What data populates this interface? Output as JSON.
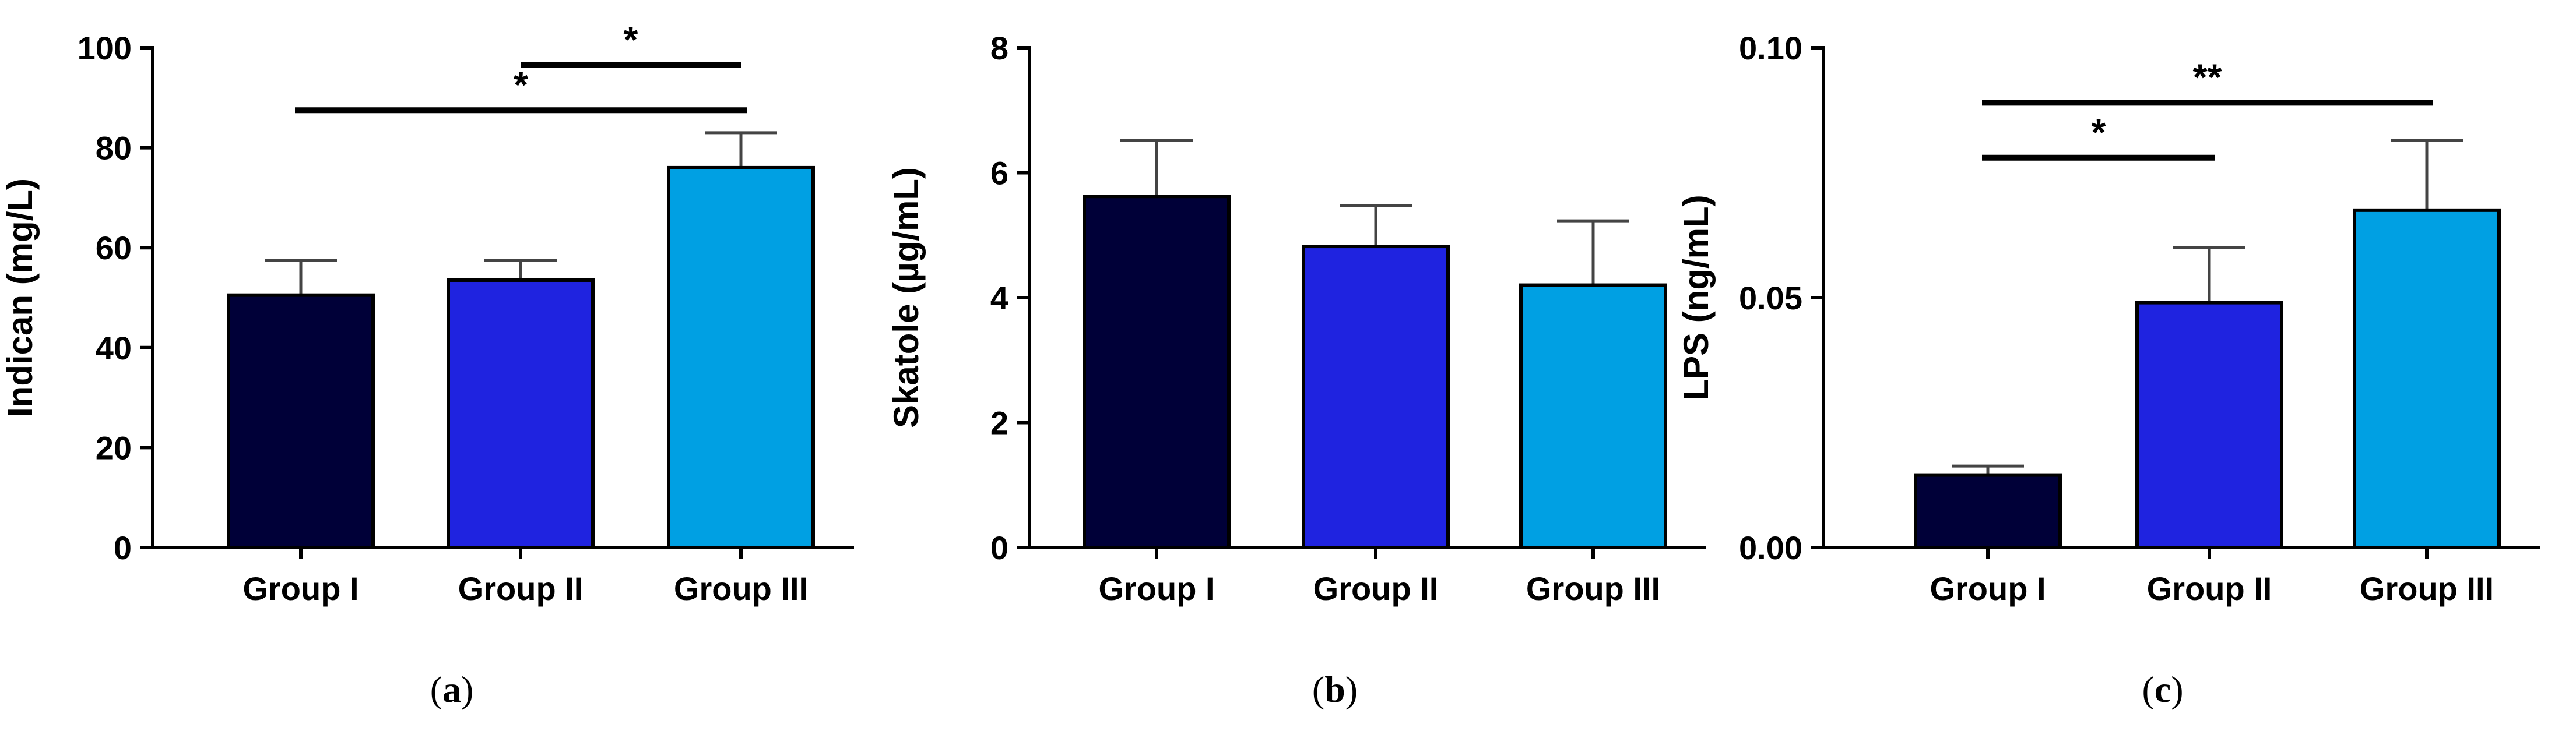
{
  "colors": {
    "group_1": "#000038",
    "group_2": "#1f23e0",
    "group_3": "#00a0e3",
    "axis": "#000000",
    "error_bar": "#444444"
  },
  "chart_data": [
    {
      "type": "bar",
      "panel": "(a)",
      "caption": {
        "open": "(",
        "letter": "a",
        "close": ")"
      },
      "ylabel": "Indican (mg/L)",
      "categories": [
        "Group I",
        "Group II",
        "Group III"
      ],
      "values": [
        50.5,
        53.5,
        76
      ],
      "errors": [
        7,
        4,
        7
      ],
      "ylim": [
        0,
        100
      ],
      "yticks": [
        "0",
        "20",
        "40",
        "60",
        "80",
        "100"
      ],
      "tick_values": [
        0,
        20,
        40,
        60,
        80,
        100
      ],
      "significance": [
        {
          "from": 1,
          "to": 2,
          "label": "*",
          "level": 96.5
        },
        {
          "from": 0,
          "to": 2,
          "label": "*",
          "level": 87.5
        }
      ]
    },
    {
      "type": "bar",
      "panel": "(b)",
      "caption": {
        "open": "(",
        "letter": "b",
        "close": ")"
      },
      "ylabel": "Skatole (µg/mL)",
      "categories": [
        "Group I",
        "Group II",
        "Group III"
      ],
      "values": [
        5.62,
        4.82,
        4.2
      ],
      "errors": [
        0.9,
        0.65,
        1.03
      ],
      "ylim": [
        0,
        8
      ],
      "yticks": [
        "0",
        "2",
        "4",
        "6",
        "8"
      ],
      "tick_values": [
        0,
        2,
        4,
        6,
        8
      ],
      "significance": []
    },
    {
      "type": "bar",
      "panel": "(c)",
      "caption": {
        "open": "(",
        "letter": "c",
        "close": ")"
      },
      "ylabel": "LPS (ng/mL)",
      "categories": [
        "Group I",
        "Group II",
        "Group III"
      ],
      "values": [
        0.0145,
        0.049,
        0.0675
      ],
      "errors": [
        0.0018,
        0.011,
        0.014
      ],
      "ylim": [
        0,
        0.1
      ],
      "yticks": [
        "0.00",
        "0.05",
        "0.10"
      ],
      "tick_values": [
        0,
        0.05,
        0.1
      ],
      "significance": [
        {
          "from": 0,
          "to": 1,
          "label": "*",
          "level": 0.078
        },
        {
          "from": 0,
          "to": 2,
          "label": "**",
          "level": 0.089
        }
      ]
    }
  ]
}
